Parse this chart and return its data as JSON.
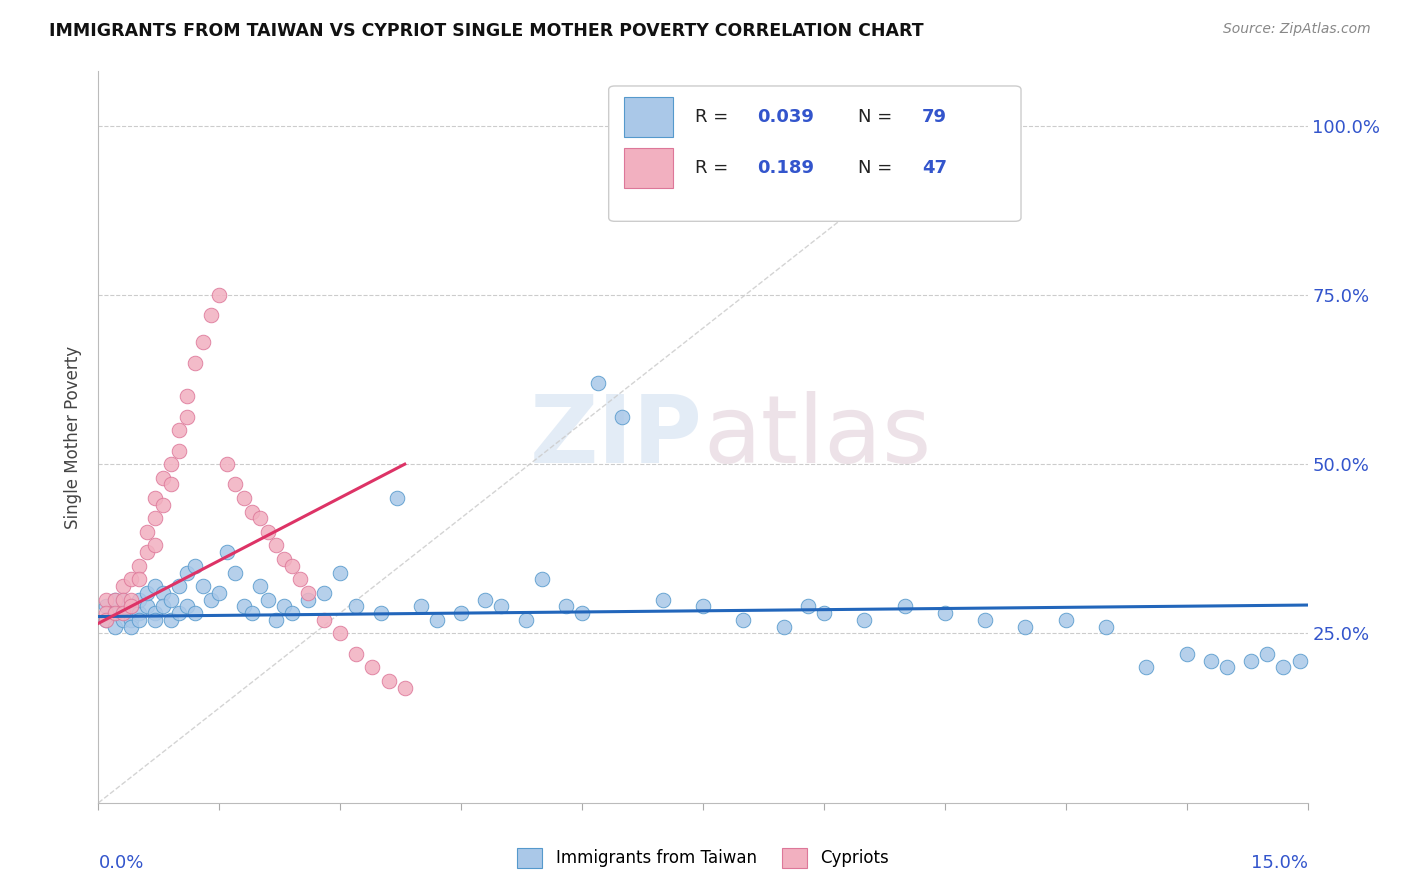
{
  "title": "IMMIGRANTS FROM TAIWAN VS CYPRIOT SINGLE MOTHER POVERTY CORRELATION CHART",
  "source": "Source: ZipAtlas.com",
  "ylabel": "Single Mother Poverty",
  "xlim": [
    0.0,
    0.15
  ],
  "ylim": [
    0.0,
    1.08
  ],
  "taiwan_R": "0.039",
  "taiwan_N": "79",
  "cypriot_R": "0.189",
  "cypriot_N": "47",
  "taiwan_color": "#aac8e8",
  "cypriot_color": "#f2b0c0",
  "taiwan_edge": "#5599cc",
  "cypriot_edge": "#dd7799",
  "taiwan_trend_color": "#2266bb",
  "cypriot_trend_color": "#dd3366",
  "diagonal_color": "#cccccc",
  "legend_color": "#3355cc",
  "bg_color": "#ffffff",
  "taiwan_x": [
    0.001,
    0.001,
    0.002,
    0.002,
    0.002,
    0.003,
    0.003,
    0.003,
    0.004,
    0.004,
    0.004,
    0.005,
    0.005,
    0.005,
    0.006,
    0.006,
    0.007,
    0.007,
    0.007,
    0.008,
    0.008,
    0.009,
    0.009,
    0.01,
    0.01,
    0.011,
    0.011,
    0.012,
    0.012,
    0.013,
    0.014,
    0.015,
    0.016,
    0.017,
    0.018,
    0.019,
    0.02,
    0.021,
    0.022,
    0.023,
    0.024,
    0.026,
    0.028,
    0.03,
    0.032,
    0.035,
    0.037,
    0.04,
    0.042,
    0.045,
    0.048,
    0.05,
    0.053,
    0.055,
    0.058,
    0.06,
    0.062,
    0.065,
    0.07,
    0.075,
    0.08,
    0.085,
    0.088,
    0.09,
    0.095,
    0.1,
    0.105,
    0.11,
    0.115,
    0.12,
    0.125,
    0.13,
    0.135,
    0.138,
    0.14,
    0.143,
    0.145,
    0.147,
    0.149
  ],
  "taiwan_y": [
    0.27,
    0.29,
    0.28,
    0.3,
    0.26,
    0.28,
    0.3,
    0.27,
    0.29,
    0.27,
    0.26,
    0.28,
    0.27,
    0.3,
    0.29,
    0.31,
    0.32,
    0.28,
    0.27,
    0.31,
    0.29,
    0.3,
    0.27,
    0.32,
    0.28,
    0.34,
    0.29,
    0.35,
    0.28,
    0.32,
    0.3,
    0.31,
    0.37,
    0.34,
    0.29,
    0.28,
    0.32,
    0.3,
    0.27,
    0.29,
    0.28,
    0.3,
    0.31,
    0.34,
    0.29,
    0.28,
    0.45,
    0.29,
    0.27,
    0.28,
    0.3,
    0.29,
    0.27,
    0.33,
    0.29,
    0.28,
    0.62,
    0.57,
    0.3,
    0.29,
    0.27,
    0.26,
    0.29,
    0.28,
    0.27,
    0.29,
    0.28,
    0.27,
    0.26,
    0.27,
    0.26,
    0.2,
    0.22,
    0.21,
    0.2,
    0.21,
    0.22,
    0.2,
    0.21
  ],
  "cypriot_x": [
    0.001,
    0.001,
    0.001,
    0.002,
    0.002,
    0.003,
    0.003,
    0.003,
    0.004,
    0.004,
    0.004,
    0.005,
    0.005,
    0.006,
    0.006,
    0.007,
    0.007,
    0.007,
    0.008,
    0.008,
    0.009,
    0.009,
    0.01,
    0.01,
    0.011,
    0.011,
    0.012,
    0.013,
    0.014,
    0.015,
    0.016,
    0.017,
    0.018,
    0.019,
    0.02,
    0.021,
    0.022,
    0.023,
    0.024,
    0.025,
    0.026,
    0.028,
    0.03,
    0.032,
    0.034,
    0.036,
    0.038
  ],
  "cypriot_y": [
    0.3,
    0.28,
    0.27,
    0.3,
    0.28,
    0.32,
    0.3,
    0.28,
    0.33,
    0.3,
    0.29,
    0.35,
    0.33,
    0.4,
    0.37,
    0.45,
    0.42,
    0.38,
    0.48,
    0.44,
    0.5,
    0.47,
    0.55,
    0.52,
    0.6,
    0.57,
    0.65,
    0.68,
    0.72,
    0.75,
    0.5,
    0.47,
    0.45,
    0.43,
    0.42,
    0.4,
    0.38,
    0.36,
    0.35,
    0.33,
    0.31,
    0.27,
    0.25,
    0.22,
    0.2,
    0.18,
    0.17
  ],
  "xtick_positions": [
    0.0,
    0.015,
    0.03,
    0.045,
    0.06,
    0.075,
    0.09,
    0.105,
    0.12,
    0.135,
    0.15
  ],
  "ytick_positions": [
    0.25,
    0.5,
    0.75,
    1.0
  ],
  "ytick_labels": [
    "25.0%",
    "50.0%",
    "75.0%",
    "100.0%"
  ]
}
